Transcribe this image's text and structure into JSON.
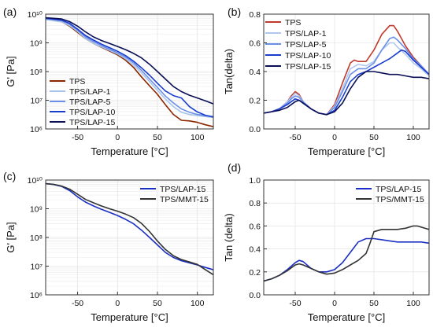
{
  "chart_data": [
    {
      "id": "a",
      "panel_label": "(a)",
      "type": "line",
      "yscale": "log",
      "xlabel": "Temperature [°C]",
      "ylabel": "G' [Pa]",
      "xlim": [
        -90,
        120
      ],
      "ylim_exp": [
        6,
        10
      ],
      "xticks": [
        -50,
        0,
        50,
        100
      ],
      "xtick_labels": [
        "-50",
        "0",
        "50",
        "100"
      ],
      "yticks_exp": [
        6,
        7,
        8,
        9,
        10
      ],
      "ytick_labels": [
        "10⁶",
        "10⁷",
        "10⁸",
        "10⁹",
        "10¹⁰"
      ],
      "grid": true,
      "legend_position": "lower-left",
      "series": [
        {
          "name": "TPS",
          "color": "#8b2500",
          "x": [
            -90,
            -70,
            -60,
            -50,
            -40,
            -30,
            -20,
            -10,
            0,
            10,
            20,
            30,
            40,
            50,
            60,
            70,
            80,
            90,
            100,
            110,
            120
          ],
          "y": [
            6800000000.0,
            5500000000.0,
            3800000000.0,
            2300000000.0,
            1400000000.0,
            950000000.0,
            700000000.0,
            520000000.0,
            380000000.0,
            250000000.0,
            140000000.0,
            65000000.0,
            32000000.0,
            16000000.0,
            7000000.0,
            3200000.0,
            2000000.0,
            1900000.0,
            1700000.0,
            1400000.0,
            1200000.0
          ]
        },
        {
          "name": "TPS/LAP-1",
          "color": "#a8c4e8",
          "x": [
            -90,
            -70,
            -60,
            -50,
            -40,
            -30,
            -20,
            -10,
            0,
            10,
            20,
            30,
            40,
            50,
            60,
            70,
            80,
            90,
            100,
            110,
            120
          ],
          "y": [
            6500000000.0,
            5400000000.0,
            4000000000.0,
            2500000000.0,
            1400000000.0,
            950000000.0,
            720000000.0,
            550000000.0,
            410000000.0,
            280000000.0,
            170000000.0,
            90000000.0,
            45000000.0,
            22000000.0,
            11000000.0,
            6000000.0,
            3800000.0,
            3200000.0,
            2900000.0,
            2700000.0,
            2500000.0
          ]
        },
        {
          "name": "TPS/LAP-5",
          "color": "#6b8fe8",
          "x": [
            -90,
            -70,
            -60,
            -50,
            -40,
            -30,
            -20,
            -10,
            0,
            10,
            20,
            30,
            40,
            50,
            60,
            70,
            80,
            90,
            100,
            110,
            120
          ],
          "y": [
            7000000000.0,
            6000000000.0,
            4500000000.0,
            2800000000.0,
            1600000000.0,
            1100000000.0,
            800000000.0,
            600000000.0,
            450000000.0,
            320000000.0,
            200000000.0,
            110000000.0,
            55000000.0,
            28000000.0,
            14000000.0,
            8000000.0,
            5000000.0,
            3800000.0,
            3200000.0,
            2900000.0,
            2700000.0
          ]
        },
        {
          "name": "TPS/LAP-10",
          "color": "#1a3ccf",
          "x": [
            -90,
            -70,
            -60,
            -50,
            -40,
            -30,
            -20,
            -10,
            0,
            10,
            20,
            30,
            40,
            50,
            60,
            70,
            80,
            90,
            100,
            110,
            120
          ],
          "y": [
            7200000000.0,
            6200000000.0,
            4800000000.0,
            3000000000.0,
            1800000000.0,
            1250000000.0,
            900000000.0,
            680000000.0,
            510000000.0,
            360000000.0,
            230000000.0,
            135000000.0,
            75000000.0,
            39000000.0,
            21000000.0,
            14500000.0,
            12000000.0,
            6000000.0,
            3900000.0,
            3000000.0,
            2600000.0
          ]
        },
        {
          "name": "TPS/LAP-15",
          "color": "#0a0f55",
          "x": [
            -90,
            -70,
            -60,
            -50,
            -40,
            -30,
            -20,
            -10,
            0,
            10,
            20,
            30,
            40,
            50,
            60,
            70,
            80,
            90,
            100,
            110,
            120
          ],
          "y": [
            7500000000.0,
            6800000000.0,
            5500000000.0,
            3800000000.0,
            2400000000.0,
            1600000000.0,
            1200000000.0,
            950000000.0,
            750000000.0,
            580000000.0,
            430000000.0,
            300000000.0,
            180000000.0,
            100000000.0,
            55000000.0,
            30000000.0,
            20000000.0,
            15000000.0,
            12000000.0,
            9500000.0,
            7500000.0
          ]
        }
      ]
    },
    {
      "id": "b",
      "panel_label": "(b)",
      "type": "line",
      "yscale": "linear",
      "xlabel": "Temperature [°C]",
      "ylabel": "Tan(delta)",
      "xlim": [
        -90,
        120
      ],
      "ylim": [
        0,
        0.8
      ],
      "xticks": [
        -50,
        0,
        50,
        100
      ],
      "xtick_labels": [
        "-50",
        "0",
        "50",
        "100"
      ],
      "yticks": [
        0,
        0.2,
        0.4,
        0.6,
        0.8
      ],
      "ytick_labels": [
        "0.0",
        "0.2",
        "0.4",
        "0.6",
        "0.8"
      ],
      "grid": true,
      "legend_position": "top-left",
      "series": [
        {
          "name": "TPS",
          "color": "#c0392b",
          "x": [
            -90,
            -80,
            -70,
            -60,
            -55,
            -50,
            -45,
            -40,
            -30,
            -20,
            -10,
            0,
            10,
            20,
            25,
            30,
            40,
            50,
            60,
            70,
            75,
            80,
            90,
            100,
            110,
            120
          ],
          "y": [
            0.11,
            0.12,
            0.14,
            0.19,
            0.23,
            0.26,
            0.24,
            0.19,
            0.14,
            0.11,
            0.1,
            0.17,
            0.32,
            0.46,
            0.48,
            0.47,
            0.47,
            0.55,
            0.66,
            0.72,
            0.72,
            0.68,
            0.58,
            0.5,
            0.44,
            0.38
          ]
        },
        {
          "name": "TPS/LAP-1",
          "color": "#b0c8ef",
          "x": [
            -90,
            -80,
            -70,
            -60,
            -55,
            -50,
            -45,
            -40,
            -30,
            -20,
            -10,
            0,
            10,
            20,
            30,
            40,
            50,
            60,
            70,
            75,
            80,
            90,
            100,
            110,
            120
          ],
          "y": [
            0.11,
            0.12,
            0.14,
            0.19,
            0.22,
            0.25,
            0.23,
            0.19,
            0.14,
            0.11,
            0.1,
            0.16,
            0.28,
            0.42,
            0.45,
            0.44,
            0.47,
            0.55,
            0.6,
            0.6,
            0.57,
            0.52,
            0.46,
            0.42,
            0.37
          ]
        },
        {
          "name": "TPS/LAP-5",
          "color": "#6b8fe8",
          "x": [
            -90,
            -80,
            -70,
            -60,
            -55,
            -50,
            -45,
            -40,
            -30,
            -20,
            -10,
            0,
            10,
            20,
            30,
            40,
            50,
            60,
            70,
            75,
            80,
            90,
            100,
            110,
            120
          ],
          "y": [
            0.11,
            0.12,
            0.14,
            0.18,
            0.21,
            0.23,
            0.22,
            0.19,
            0.14,
            0.11,
            0.1,
            0.15,
            0.26,
            0.38,
            0.42,
            0.42,
            0.46,
            0.55,
            0.63,
            0.64,
            0.62,
            0.56,
            0.49,
            0.44,
            0.38
          ]
        },
        {
          "name": "TPS/LAP-10",
          "color": "#1a3ccf",
          "x": [
            -90,
            -80,
            -70,
            -60,
            -55,
            -50,
            -45,
            -40,
            -30,
            -20,
            -10,
            0,
            10,
            20,
            30,
            40,
            50,
            60,
            70,
            80,
            85,
            90,
            100,
            110,
            120
          ],
          "y": [
            0.11,
            0.12,
            0.14,
            0.17,
            0.19,
            0.21,
            0.2,
            0.18,
            0.14,
            0.11,
            0.1,
            0.13,
            0.22,
            0.33,
            0.38,
            0.4,
            0.43,
            0.46,
            0.49,
            0.53,
            0.55,
            0.54,
            0.48,
            0.43,
            0.38
          ]
        },
        {
          "name": "TPS/LAP-15",
          "color": "#0a0f55",
          "x": [
            -90,
            -80,
            -70,
            -60,
            -50,
            -45,
            -40,
            -30,
            -20,
            -10,
            0,
            10,
            20,
            30,
            40,
            50,
            60,
            70,
            80,
            90,
            100,
            110,
            120
          ],
          "y": [
            0.11,
            0.12,
            0.13,
            0.15,
            0.19,
            0.2,
            0.18,
            0.14,
            0.11,
            0.1,
            0.12,
            0.18,
            0.28,
            0.36,
            0.4,
            0.4,
            0.39,
            0.38,
            0.38,
            0.37,
            0.36,
            0.36,
            0.35
          ]
        }
      ]
    },
    {
      "id": "c",
      "panel_label": "(c)",
      "type": "line",
      "yscale": "log",
      "xlabel": "Temperature [°C]",
      "ylabel": "G' [Pa]",
      "xlim": [
        -90,
        120
      ],
      "ylim_exp": [
        6,
        10
      ],
      "xticks": [
        -50,
        0,
        50,
        100
      ],
      "xtick_labels": [
        "-50",
        "0",
        "50",
        "100"
      ],
      "yticks_exp": [
        6,
        7,
        8,
        9,
        10
      ],
      "ytick_labels": [
        "10⁶",
        "10⁷",
        "10⁸",
        "10⁹",
        "10¹⁰"
      ],
      "grid": true,
      "legend_position": "top-right",
      "series": [
        {
          "name": "TPS/LAP-15",
          "color": "#1a2fc4",
          "x": [
            -90,
            -80,
            -70,
            -60,
            -50,
            -40,
            -30,
            -20,
            -10,
            0,
            10,
            20,
            30,
            40,
            50,
            60,
            70,
            80,
            90,
            100,
            110,
            120
          ],
          "y": [
            7500000000.0,
            7000000000.0,
            6000000000.0,
            4300000000.0,
            2600000000.0,
            1700000000.0,
            1250000000.0,
            950000000.0,
            750000000.0,
            580000000.0,
            430000000.0,
            300000000.0,
            180000000.0,
            100000000.0,
            55000000.0,
            30000000.0,
            20000000.0,
            15500000.0,
            13000000.0,
            11000000.0,
            9000000.0,
            7500000.0
          ]
        },
        {
          "name": "TPS/MMT-15",
          "color": "#333333",
          "x": [
            -90,
            -80,
            -70,
            -60,
            -50,
            -40,
            -30,
            -20,
            -10,
            0,
            10,
            20,
            30,
            40,
            50,
            60,
            70,
            80,
            90,
            100,
            110,
            120
          ],
          "y": [
            7500000000.0,
            7100000000.0,
            6200000000.0,
            4800000000.0,
            3200000000.0,
            2100000000.0,
            1600000000.0,
            1250000000.0,
            1000000000.0,
            820000000.0,
            650000000.0,
            490000000.0,
            310000000.0,
            160000000.0,
            75000000.0,
            38000000.0,
            23000000.0,
            17000000.0,
            14000000.0,
            11500000.0,
            7500000.0,
            5000000.0
          ]
        }
      ]
    },
    {
      "id": "d",
      "panel_label": "(d)",
      "type": "line",
      "yscale": "linear",
      "xlabel": "Temperature [°C]",
      "ylabel": "Tan (delta)",
      "xlim": [
        -90,
        120
      ],
      "ylim": [
        0,
        1.0
      ],
      "xticks": [
        -50,
        0,
        50,
        100
      ],
      "xtick_labels": [
        "-50",
        "0",
        "50",
        "100"
      ],
      "yticks": [
        0,
        0.2,
        0.4,
        0.6,
        0.8,
        1.0
      ],
      "ytick_labels": [
        "0.0",
        "0.2",
        "0.4",
        "0.6",
        "0.8",
        "1.0"
      ],
      "grid": true,
      "legend_position": "top-right",
      "series": [
        {
          "name": "TPS/LAP-15",
          "color": "#1a2fc4",
          "x": [
            -90,
            -80,
            -70,
            -60,
            -50,
            -45,
            -40,
            -30,
            -20,
            -10,
            0,
            10,
            20,
            30,
            40,
            50,
            60,
            70,
            80,
            90,
            100,
            110,
            120
          ],
          "y": [
            0.12,
            0.14,
            0.17,
            0.22,
            0.28,
            0.3,
            0.29,
            0.23,
            0.2,
            0.2,
            0.22,
            0.28,
            0.37,
            0.46,
            0.49,
            0.49,
            0.48,
            0.47,
            0.46,
            0.46,
            0.46,
            0.46,
            0.45
          ]
        },
        {
          "name": "TPS/MMT-15",
          "color": "#333333",
          "x": [
            -90,
            -80,
            -70,
            -60,
            -50,
            -45,
            -40,
            -30,
            -20,
            -10,
            0,
            10,
            20,
            30,
            40,
            45,
            50,
            60,
            70,
            80,
            90,
            100,
            105,
            110,
            120
          ],
          "y": [
            0.12,
            0.14,
            0.17,
            0.21,
            0.26,
            0.27,
            0.26,
            0.23,
            0.2,
            0.18,
            0.19,
            0.22,
            0.26,
            0.3,
            0.36,
            0.45,
            0.55,
            0.57,
            0.57,
            0.57,
            0.58,
            0.6,
            0.6,
            0.59,
            0.57
          ]
        }
      ]
    }
  ]
}
